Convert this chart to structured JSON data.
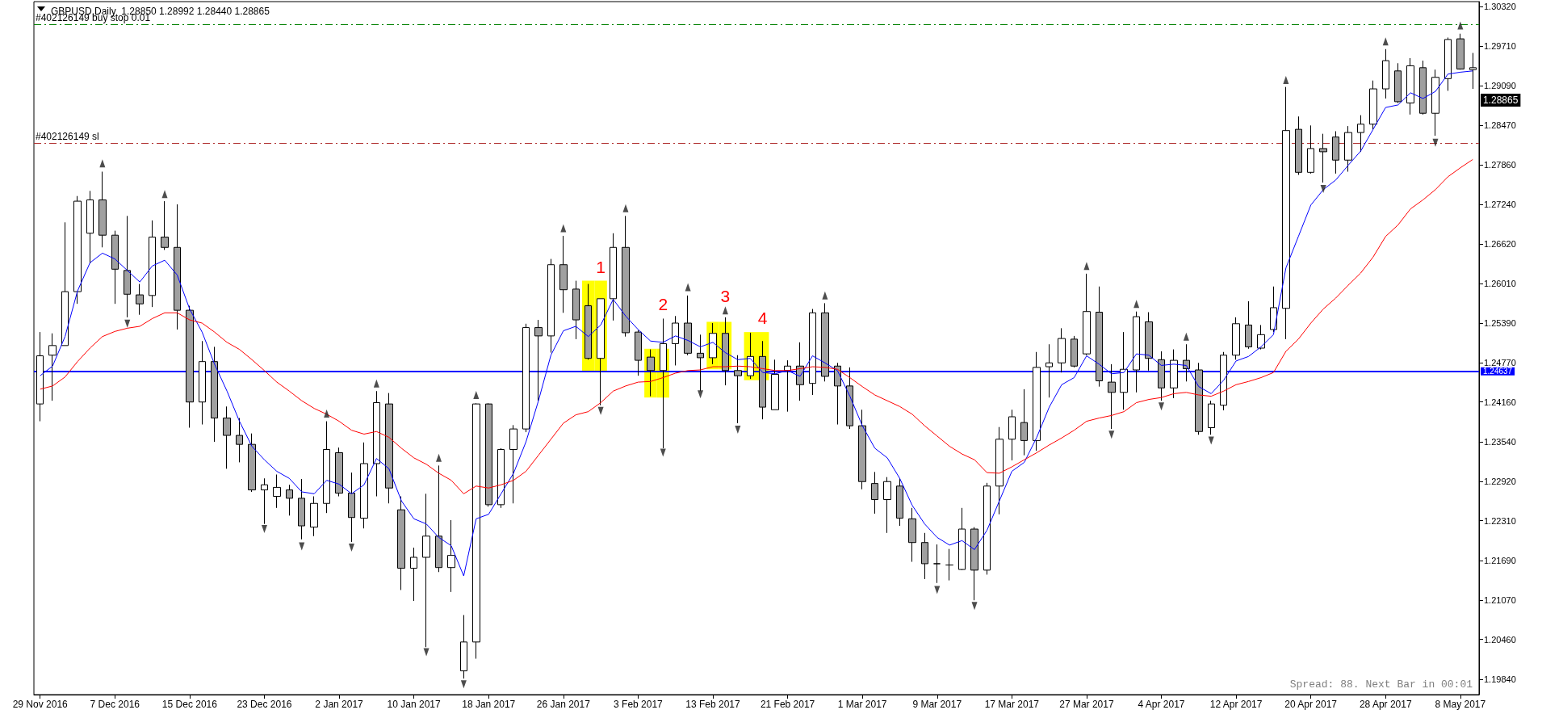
{
  "chart_data": {
    "type": "candlestick",
    "title": "GBPUSD,Daily  1.28850 1.28992 1.28440 1.28865",
    "colors": [
      "#ffffff",
      "#ffffff",
      "#ffffff",
      "#ffffff",
      "#ffffff",
      "#a0a0a0",
      "#a0a0a0",
      "#a0a0a0",
      "#a0a0a0",
      "#ffffff",
      "#a0a0a0",
      "#a0a0a0",
      "#a0a0a0",
      "#ffffff",
      "#a0a0a0",
      "#a0a0a0",
      "#a0a0a0",
      "#a0a0a0",
      "#ffffff",
      "#ffffff",
      "#a0a0a0",
      "#a0a0a0",
      "#ffffff",
      "#ffffff",
      "#a0a0a0",
      "#a0a0a0",
      "#ffffff",
      "#ffffff",
      "#a0a0a0",
      "#a0a0a0",
      "#ffffff",
      "#ffffff",
      "#a0a0a0",
      "#ffffff",
      "#ffffff",
      "#ffffff",
      "#a0a0a0",
      "#ffffff",
      "#ffffff",
      "#ffffff",
      "#a0a0a0",
      "#ffffff",
      "#a0a0a0",
      "#a0a0a0",
      "#a0a0a0",
      "#ffffff",
      "#ffffff",
      "#a0a0a0",
      "#a0a0a0",
      "#a0a0a0",
      "#ffffff",
      "#ffffff",
      "#a0a0a0",
      "#a0a0a0",
      "#ffffff",
      "#a0a0a0",
      "#a0a0a0",
      "#ffffff",
      "#a0a0a0",
      "#ffffff",
      "#ffffff",
      "#a0a0a0",
      "#ffffff",
      "#a0a0a0",
      "#a0a0a0",
      "#a0a0a0",
      "#a0a0a0",
      "#a0a0a0",
      "#ffffff",
      "#a0a0a0",
      "#a0a0a0",
      "#a0a0a0",
      "#000000",
      "#000000",
      "#ffffff",
      "#a0a0a0",
      "#ffffff",
      "#ffffff",
      "#ffffff",
      "#a0a0a0",
      "#ffffff",
      "#ffffff",
      "#ffffff",
      "#a0a0a0",
      "#ffffff",
      "#a0a0a0",
      "#a0a0a0",
      "#ffffff",
      "#ffffff",
      "#a0a0a0",
      "#a0a0a0",
      "#ffffff",
      "#a0a0a0",
      "#a0a0a0",
      "#ffffff",
      "#ffffff",
      "#ffffff",
      "#a0a0a0",
      "#ffffff",
      "#ffffff",
      "#ffffff",
      "#a0a0a0",
      "#ffffff",
      "#a0a0a0",
      "#a0a0a0",
      "#ffffff",
      "#ffffff",
      "#ffffff",
      "#ffffff",
      "#a0a0a0",
      "#ffffff",
      "#a0a0a0",
      "#ffffff",
      "#ffffff",
      "#a0a0a0",
      "#ffffff"
    ],
    "categories": [
      "29 Nov 2016",
      null,
      null,
      null,
      null,
      null,
      "7 Dec 2016",
      null,
      null,
      null,
      null,
      null,
      "15 Dec 2016",
      null,
      null,
      null,
      null,
      null,
      "23 Dec 2016",
      null,
      null,
      null,
      null,
      null,
      "2 Jan 2017",
      null,
      null,
      null,
      null,
      null,
      "10 Jan 2017",
      null,
      null,
      null,
      null,
      null,
      "18 Jan 2017",
      null,
      null,
      null,
      null,
      null,
      "26 Jan 2017",
      null,
      null,
      null,
      null,
      null,
      "3 Feb 2017",
      null,
      null,
      null,
      null,
      null,
      "13 Feb 2017",
      null,
      null,
      null,
      null,
      null,
      "21 Feb 2017",
      null,
      null,
      null,
      null,
      null,
      "1 Mar 2017",
      null,
      null,
      null,
      null,
      null,
      "9 Mar 2017",
      null,
      null,
      null,
      null,
      null,
      "17 Mar 2017",
      null,
      null,
      null,
      null,
      null,
      "27 Mar 2017",
      null,
      null,
      null,
      null,
      null,
      "4 Apr 2017",
      null,
      null,
      null,
      null,
      null,
      "12 Apr 2017",
      null,
      null,
      null,
      null,
      null,
      "20 Apr 2017",
      null,
      null,
      null,
      null,
      null,
      "28 Apr 2017",
      null,
      null,
      null,
      null,
      null,
      "8 May 2017",
      null
    ],
    "ohlc": [
      [
        1.2413,
        1.2525,
        1.2386,
        1.2488
      ],
      [
        1.2489,
        1.2523,
        1.2418,
        1.2504
      ],
      [
        1.2504,
        1.2696,
        1.2504,
        1.2588
      ],
      [
        1.2588,
        1.2737,
        1.2569,
        1.2729
      ],
      [
        1.2679,
        1.2745,
        1.2632,
        1.2731
      ],
      [
        1.2731,
        1.2775,
        1.2657,
        1.2676
      ],
      [
        1.2676,
        1.2683,
        1.2569,
        1.2623
      ],
      [
        1.2621,
        1.2706,
        1.2548,
        1.2584
      ],
      [
        1.2583,
        1.26,
        1.2552,
        1.2569
      ],
      [
        1.2582,
        1.2699,
        1.2564,
        1.2673
      ],
      [
        1.2673,
        1.2729,
        1.2653,
        1.2657
      ],
      [
        1.2657,
        1.2724,
        1.2529,
        1.2559
      ],
      [
        1.2559,
        1.2566,
        1.2376,
        1.2416
      ],
      [
        1.2416,
        1.2511,
        1.2381,
        1.2479
      ],
      [
        1.2479,
        1.2502,
        1.2354,
        1.2391
      ],
      [
        1.2391,
        1.2409,
        1.2312,
        1.2364
      ],
      [
        1.2364,
        1.2391,
        1.2322,
        1.235
      ],
      [
        1.235,
        1.2367,
        1.2276,
        1.2279
      ],
      [
        1.2279,
        1.2297,
        1.2226,
        1.2287
      ],
      [
        1.2269,
        1.2303,
        1.2251,
        1.2283
      ],
      [
        1.2279,
        1.2287,
        1.2239,
        1.2266
      ],
      [
        1.2266,
        1.2296,
        1.2202,
        1.2223
      ],
      [
        1.2221,
        1.2269,
        1.2207,
        1.2258
      ],
      [
        1.2258,
        1.2386,
        1.2243,
        1.2342
      ],
      [
        1.2337,
        1.2345,
        1.2269,
        1.2274
      ],
      [
        1.2274,
        1.2306,
        1.2198,
        1.2236
      ],
      [
        1.2235,
        1.2353,
        1.2219,
        1.232
      ],
      [
        1.232,
        1.2433,
        1.2269,
        1.2415
      ],
      [
        1.2413,
        1.243,
        1.2258,
        1.2282
      ],
      [
        1.2248,
        1.2269,
        1.2123,
        1.2157
      ],
      [
        1.2157,
        1.2189,
        1.2106,
        1.2174
      ],
      [
        1.2174,
        1.2273,
        1.2034,
        1.2207
      ],
      [
        1.2207,
        1.2317,
        1.2151,
        1.2158
      ],
      [
        1.2158,
        1.2232,
        1.212,
        1.2177
      ],
      [
        1.1997,
        1.2084,
        1.1985,
        1.2042
      ],
      [
        1.2042,
        1.2414,
        1.2016,
        1.2413
      ],
      [
        1.2413,
        1.2414,
        1.2253,
        1.2256
      ],
      [
        1.2256,
        1.2344,
        1.2251,
        1.2342
      ],
      [
        1.2342,
        1.238,
        1.2258,
        1.2374
      ],
      [
        1.2374,
        1.2538,
        1.2369,
        1.2532
      ],
      [
        1.2532,
        1.2544,
        1.2418,
        1.2519
      ],
      [
        1.2519,
        1.2639,
        1.2493,
        1.263
      ],
      [
        1.263,
        1.2675,
        1.2555,
        1.2591
      ],
      [
        1.2592,
        1.2605,
        1.2514,
        1.2544
      ],
      [
        1.2566,
        1.26,
        1.2482,
        1.2484
      ],
      [
        1.2484,
        1.2577,
        1.2411,
        1.2577
      ],
      [
        1.2577,
        1.2679,
        1.2543,
        1.2657
      ],
      [
        1.2657,
        1.2706,
        1.2518,
        1.2524
      ],
      [
        1.2525,
        1.2528,
        1.2457,
        1.2481
      ],
      [
        1.2486,
        1.2498,
        1.2425,
        1.2465
      ],
      [
        1.2465,
        1.2546,
        1.2344,
        1.2507
      ],
      [
        1.2507,
        1.255,
        1.2473,
        1.2539
      ],
      [
        1.2539,
        1.2582,
        1.2489,
        1.2492
      ],
      [
        1.2492,
        1.2521,
        1.2433,
        1.2485
      ],
      [
        1.2485,
        1.2539,
        1.2475,
        1.2523
      ],
      [
        1.2523,
        1.2548,
        1.2442,
        1.2465
      ],
      [
        1.2465,
        1.2489,
        1.2383,
        1.2457
      ],
      [
        1.2457,
        1.2524,
        1.2452,
        1.2487
      ],
      [
        1.2487,
        1.2511,
        1.2389,
        1.2408
      ],
      [
        1.2404,
        1.2482,
        1.2404,
        1.2459
      ],
      [
        1.2465,
        1.2481,
        1.2401,
        1.2472
      ],
      [
        1.2472,
        1.2509,
        1.2418,
        1.2443
      ],
      [
        1.2445,
        1.2561,
        1.2427,
        1.2555
      ],
      [
        1.2555,
        1.257,
        1.2448,
        1.2456
      ],
      [
        1.2472,
        1.2477,
        1.2381,
        1.2441
      ],
      [
        1.2441,
        1.247,
        1.2374,
        1.2379
      ],
      [
        1.2379,
        1.2404,
        1.228,
        1.2292
      ],
      [
        1.2289,
        1.2307,
        1.2242,
        1.2264
      ],
      [
        1.2264,
        1.2299,
        1.2212,
        1.2292
      ],
      [
        1.2285,
        1.2297,
        1.2223,
        1.2235
      ],
      [
        1.2234,
        1.2251,
        1.2167,
        1.2197
      ],
      [
        1.2197,
        1.2212,
        1.214,
        1.2164
      ],
      [
        1.2164,
        1.2194,
        1.2134,
        1.2164
      ],
      [
        1.2162,
        1.2187,
        1.2138,
        1.2162
      ],
      [
        1.2155,
        1.2251,
        1.2154,
        1.2218
      ],
      [
        1.2218,
        1.2221,
        1.2107,
        1.2154
      ],
      [
        1.2154,
        1.229,
        1.2147,
        1.2285
      ],
      [
        1.2285,
        1.2377,
        1.2241,
        1.2358
      ],
      [
        1.2358,
        1.2404,
        1.2325,
        1.2393
      ],
      [
        1.2384,
        1.2436,
        1.2333,
        1.2356
      ],
      [
        1.2356,
        1.2494,
        1.234,
        1.247
      ],
      [
        1.2471,
        1.2506,
        1.2423,
        1.2477
      ],
      [
        1.2477,
        1.2531,
        1.2462,
        1.2515
      ],
      [
        1.2514,
        1.2519,
        1.247,
        1.2472
      ],
      [
        1.2491,
        1.2616,
        1.2489,
        1.2557
      ],
      [
        1.2556,
        1.2596,
        1.244,
        1.2449
      ],
      [
        1.2447,
        1.2475,
        1.2374,
        1.2431
      ],
      [
        1.2431,
        1.2525,
        1.2404,
        1.2467
      ],
      [
        1.2466,
        1.2557,
        1.2431,
        1.2549
      ],
      [
        1.2541,
        1.2556,
        1.2465,
        1.2484
      ],
      [
        1.2482,
        1.2495,
        1.2418,
        1.2438
      ],
      [
        1.2438,
        1.2498,
        1.2422,
        1.2481
      ],
      [
        1.2481,
        1.2506,
        1.2448,
        1.2468
      ],
      [
        1.2466,
        1.2477,
        1.2365,
        1.237
      ],
      [
        1.2376,
        1.2418,
        1.2365,
        1.2413
      ],
      [
        1.2411,
        1.2494,
        1.2403,
        1.2489
      ],
      [
        1.2489,
        1.2548,
        1.2482,
        1.2538
      ],
      [
        1.2536,
        1.2573,
        1.2499,
        1.2502
      ],
      [
        1.25,
        1.2536,
        1.2498,
        1.2521
      ],
      [
        1.2529,
        1.2596,
        1.2525,
        1.2563
      ],
      [
        1.2562,
        1.2907,
        1.2514,
        1.2839
      ],
      [
        1.2841,
        1.2861,
        1.277,
        1.2774
      ],
      [
        1.2774,
        1.2847,
        1.2772,
        1.2811
      ],
      [
        1.2811,
        1.2834,
        1.2758,
        1.2806
      ],
      [
        1.2829,
        1.2838,
        1.2772,
        1.2793
      ],
      [
        1.2793,
        1.2846,
        1.2775,
        1.2836
      ],
      [
        1.2836,
        1.2863,
        1.2806,
        1.2849
      ],
      [
        1.2849,
        1.2917,
        1.2841,
        1.2904
      ],
      [
        1.2904,
        1.2966,
        1.2889,
        1.2948
      ],
      [
        1.2932,
        1.2944,
        1.2882,
        1.2884
      ],
      [
        1.2882,
        1.2952,
        1.2864,
        1.294
      ],
      [
        1.2937,
        1.2948,
        1.2864,
        1.2866
      ],
      [
        1.2866,
        1.2934,
        1.2831,
        1.2922
      ],
      [
        1.292,
        1.2984,
        1.2901,
        1.2981
      ],
      [
        1.2982,
        1.299,
        1.2934,
        1.2935
      ],
      [
        1.2934,
        1.296,
        1.2904,
        1.2937
      ]
    ],
    "series": [
      {
        "type": "bar",
        "values": [
          null,
          null,
          null,
          null,
          null,
          null,
          null,
          null,
          null,
          null,
          null,
          null,
          null,
          null,
          null,
          null,
          null,
          null,
          null,
          null,
          null,
          null,
          null,
          null,
          null,
          null,
          null,
          null,
          null,
          null,
          null,
          null,
          null,
          null,
          null,
          null,
          null,
          null,
          null,
          null,
          null,
          null,
          null,
          null,
          0.0141,
          0.0141,
          null,
          null,
          null,
          0.0076,
          0.0076,
          null,
          null,
          null,
          0.0074,
          0.0074,
          null,
          0.0075,
          0.0075,
          null,
          null,
          null,
          null,
          null,
          null,
          null,
          null,
          null,
          null,
          null,
          null,
          null,
          null,
          null,
          null,
          null,
          null,
          null,
          null,
          null,
          null,
          null,
          null,
          null,
          null,
          null,
          null,
          null,
          null,
          null,
          null,
          null,
          null,
          null,
          null,
          null,
          null,
          null,
          null,
          null,
          null,
          null,
          null,
          null,
          null,
          null,
          null,
          null,
          null,
          null,
          null,
          null,
          null,
          null,
          null,
          null
        ],
        "base": [
          null,
          null,
          null,
          null,
          null,
          null,
          null,
          null,
          null,
          null,
          null,
          null,
          null,
          null,
          null,
          null,
          null,
          null,
          null,
          null,
          null,
          null,
          null,
          null,
          null,
          null,
          null,
          null,
          null,
          null,
          null,
          null,
          null,
          null,
          null,
          null,
          null,
          null,
          null,
          null,
          null,
          null,
          null,
          null,
          1.2464,
          1.2464,
          null,
          null,
          null,
          1.2423,
          1.2423,
          null,
          null,
          null,
          1.2467,
          1.2467,
          null,
          1.245,
          1.245,
          null,
          null,
          null,
          null,
          null,
          null,
          null,
          null,
          null,
          null,
          null,
          null,
          null,
          null,
          null,
          null,
          null,
          null,
          null,
          null,
          null,
          null,
          null,
          null,
          null,
          null,
          null,
          null,
          null,
          null,
          null,
          null,
          null,
          null,
          null,
          null,
          null,
          null,
          null,
          null,
          null,
          null,
          null,
          null,
          null,
          null,
          null,
          null,
          null,
          null,
          null,
          null,
          null,
          null,
          null,
          null,
          null
        ],
        "color": "#ffff00"
      },
      {
        "type": "line",
        "color": "#0000ff",
        "values": [
          1.2457,
          1.2472,
          1.2518,
          1.2589,
          1.2633,
          1.2648,
          1.2639,
          1.2621,
          1.2603,
          1.2628,
          1.2637,
          1.2614,
          1.2561,
          1.2525,
          1.2475,
          1.2433,
          1.2386,
          1.2347,
          1.2326,
          1.2308,
          1.2297,
          1.2276,
          1.2273,
          1.2294,
          1.2288,
          1.2273,
          1.2287,
          1.2328,
          1.2312,
          1.2262,
          1.2234,
          1.2226,
          1.2205,
          1.2192,
          1.2145,
          1.2234,
          1.2241,
          1.2273,
          1.2305,
          1.2354,
          1.2418,
          1.2489,
          1.2527,
          1.2534,
          1.2518,
          1.2536,
          1.2576,
          1.255,
          1.2529,
          1.2511,
          1.2509,
          1.2519,
          1.2512,
          1.2502,
          1.2509,
          1.2493,
          1.2482,
          1.2484,
          1.2462,
          1.246,
          1.2465,
          1.2456,
          1.2488,
          1.2477,
          1.2465,
          1.2425,
          1.2379,
          1.2344,
          1.2329,
          1.2297,
          1.2255,
          1.2226,
          1.2205,
          1.2193,
          1.22,
          1.2186,
          1.2216,
          1.2262,
          1.2308,
          1.2322,
          1.2361,
          1.2408,
          1.2443,
          1.2454,
          1.2488,
          1.2475,
          1.246,
          1.2462,
          1.2491,
          1.2489,
          1.2473,
          1.2475,
          1.2473,
          1.244,
          1.2429,
          1.245,
          1.248,
          1.2487,
          1.2502,
          1.2521,
          1.2625,
          1.2674,
          1.2723,
          1.2747,
          1.2762,
          1.2785,
          1.2807,
          1.2841,
          1.2875,
          1.2879,
          1.2898,
          1.2889,
          1.29,
          1.2927,
          1.293,
          1.2932
        ]
      },
      {
        "type": "line",
        "color": "#ff0000",
        "values": [
          1.2436,
          1.2441,
          1.2455,
          1.2479,
          1.25,
          1.2518,
          1.2526,
          1.2531,
          1.2534,
          1.2546,
          1.2555,
          1.2555,
          1.2544,
          1.2539,
          1.2525,
          1.2509,
          1.2498,
          1.2482,
          1.2465,
          1.2447,
          1.2433,
          1.2418,
          1.2406,
          1.2397,
          1.2386,
          1.2372,
          1.2366,
          1.237,
          1.2361,
          1.2344,
          1.2329,
          1.2319,
          1.2305,
          1.2294,
          1.2273,
          1.2285,
          1.2282,
          1.2287,
          1.2294,
          1.2308,
          1.2333,
          1.2358,
          1.2383,
          1.2396,
          1.2401,
          1.2415,
          1.2433,
          1.2441,
          1.2447,
          1.2448,
          1.2454,
          1.2461,
          1.2465,
          1.2466,
          1.2471,
          1.2471,
          1.2472,
          1.2471,
          1.2468,
          1.2465,
          1.2465,
          1.2468,
          1.2471,
          1.247,
          1.2467,
          1.2454,
          1.244,
          1.2427,
          1.2418,
          1.2409,
          1.2397,
          1.2379,
          1.2363,
          1.2347,
          1.2335,
          1.2326,
          1.2306,
          1.2305,
          1.2315,
          1.2326,
          1.2337,
          1.2349,
          1.236,
          1.2372,
          1.2386,
          1.2391,
          1.2395,
          1.2401,
          1.2415,
          1.242,
          1.2423,
          1.2429,
          1.2431,
          1.2427,
          1.2425,
          1.2433,
          1.2443,
          1.2448,
          1.2454,
          1.2462,
          1.2495,
          1.2514,
          1.2539,
          1.2561,
          1.2578,
          1.2598,
          1.2617,
          1.2642,
          1.2674,
          1.2692,
          1.2717,
          1.2731,
          1.2747,
          1.2767,
          1.2781,
          1.2794
        ]
      },
      {
        "type": "scatter",
        "color": "#202020",
        "marker": "triangle",
        "values": [
          null,
          null,
          null,
          null,
          null,
          1.2788,
          null,
          null,
          null,
          null,
          1.274,
          null,
          null,
          null,
          null,
          null,
          null,
          null,
          null,
          null,
          null,
          null,
          null,
          1.2398,
          null,
          null,
          null,
          1.2445,
          null,
          null,
          null,
          null,
          1.2329,
          null,
          null,
          1.2427,
          null,
          null,
          null,
          null,
          null,
          null,
          1.2687,
          null,
          null,
          null,
          null,
          1.2718,
          null,
          null,
          null,
          null,
          1.2595,
          null,
          null,
          1.2559,
          null,
          null,
          null,
          null,
          null,
          null,
          null,
          1.2582,
          null,
          null,
          null,
          null,
          null,
          null,
          null,
          null,
          null,
          null,
          null,
          null,
          null,
          null,
          null,
          null,
          null,
          null,
          null,
          null,
          1.2628,
          null,
          null,
          null,
          1.2569,
          null,
          null,
          null,
          1.2518,
          null,
          null,
          null,
          null,
          null,
          null,
          null,
          1.2918,
          null,
          null,
          null,
          null,
          null,
          null,
          null,
          1.2978,
          null,
          null,
          null,
          null,
          null,
          1.3003,
          null
        ]
      },
      {
        "type": "scatter",
        "color": "#202020",
        "marker": "triangle",
        "values": [
          null,
          null,
          null,
          null,
          null,
          null,
          null,
          1.2538,
          null,
          null,
          null,
          null,
          null,
          null,
          null,
          null,
          null,
          null,
          1.2218,
          null,
          null,
          1.2191,
          null,
          null,
          null,
          1.2189,
          null,
          null,
          null,
          null,
          null,
          1.2026,
          null,
          null,
          1.1976,
          null,
          null,
          null,
          null,
          null,
          null,
          null,
          null,
          null,
          null,
          1.2402,
          null,
          null,
          null,
          null,
          1.2337,
          null,
          null,
          1.2428,
          null,
          null,
          1.2373,
          null,
          null,
          null,
          null,
          null,
          null,
          null,
          null,
          null,
          null,
          null,
          null,
          null,
          null,
          null,
          1.2123,
          null,
          null,
          1.2098,
          null,
          null,
          null,
          null,
          null,
          null,
          null,
          null,
          null,
          null,
          1.2365,
          null,
          null,
          null,
          1.2409,
          null,
          null,
          null,
          1.2356,
          null,
          null,
          null,
          null,
          null,
          null,
          null,
          null,
          1.2748,
          null,
          null,
          null,
          null,
          null,
          null,
          null,
          null,
          1.282,
          null,
          null,
          null
        ]
      }
    ],
    "ylim": [
      1.196,
      1.304
    ],
    "yticks": [
      {
        "value": 1.3032,
        "label": "1.30320"
      },
      {
        "value": 1.2971,
        "label": "1.29710"
      },
      {
        "value": 1.2909,
        "label": "1.29090"
      },
      {
        "value": 1.2847,
        "label": "1.28470"
      },
      {
        "value": 1.2786,
        "label": "1.27860"
      },
      {
        "value": 1.2724,
        "label": "1.27240"
      },
      {
        "value": 1.2662,
        "label": "1.26620"
      },
      {
        "value": 1.2601,
        "label": "1.26010"
      },
      {
        "value": 1.2539,
        "label": "1.25390"
      },
      {
        "value": 1.2477,
        "label": "1.24770"
      },
      {
        "value": 1.2416,
        "label": "1.24160"
      },
      {
        "value": 1.2354,
        "label": "1.23540"
      },
      {
        "value": 1.2292,
        "label": "1.22920"
      },
      {
        "value": 1.2231,
        "label": "1.22310"
      },
      {
        "value": 1.2169,
        "label": "1.21690"
      },
      {
        "value": 1.2107,
        "label": "1.21070"
      },
      {
        "value": 1.2046,
        "label": "1.20460"
      },
      {
        "value": 1.1984,
        "label": "1.19840"
      }
    ],
    "ref_lines": [
      {
        "axis": "y",
        "value": 1.3005,
        "label": "#402126149 buy stop 0.01",
        "color": "#008000",
        "line_style": "dashed"
      },
      {
        "axis": "y",
        "value": 1.282,
        "label": "#402126149 sl",
        "color": "#b03030",
        "line_style": "dashed"
      },
      {
        "axis": "y",
        "value": 1.24637,
        "label": "1.24637",
        "color": "#0000ff",
        "line_style": "solid"
      }
    ],
    "annotations": [
      "1",
      "2",
      "3",
      "4",
      "1.28865",
      "Spread: 88. Next Bar in 00:01"
    ]
  }
}
